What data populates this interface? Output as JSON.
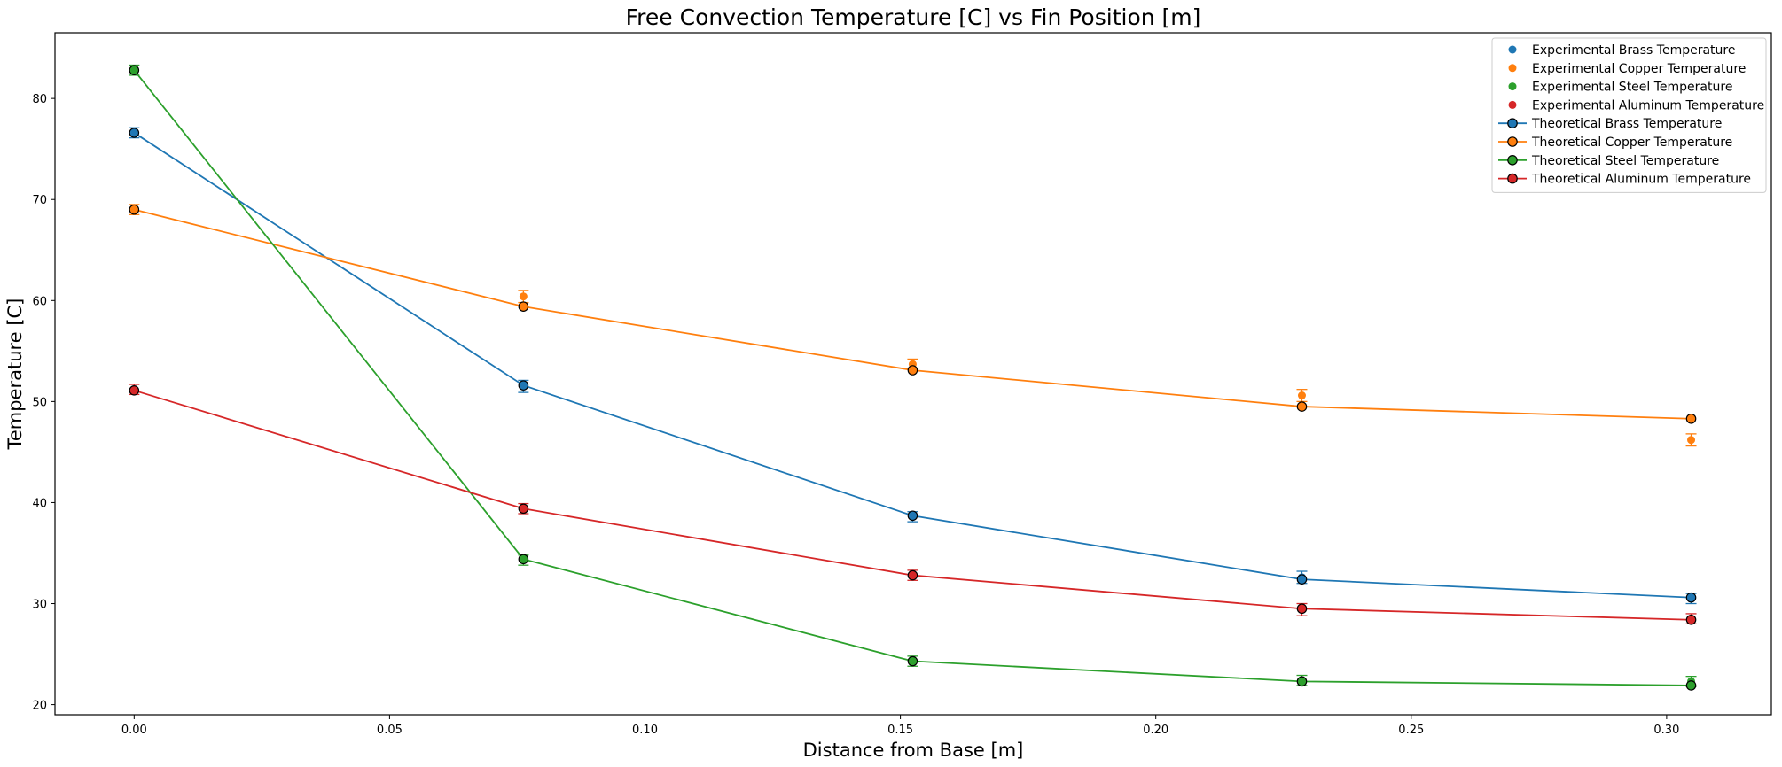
{
  "chart_data": {
    "type": "line",
    "title": "Free Convection Temperature [C] vs Fin Position [m]",
    "xlabel": "Distance from Base [m]",
    "ylabel": "Temperature [C]",
    "xlim": [
      -0.0155,
      0.3205
    ],
    "ylim": [
      19,
      86.5
    ],
    "xticks": [
      0.0,
      0.05,
      0.1,
      0.15,
      0.2,
      0.25,
      0.3
    ],
    "xtick_labels": [
      "0.00",
      "0.05",
      "0.10",
      "0.15",
      "0.20",
      "0.25",
      "0.30"
    ],
    "yticks": [
      20,
      30,
      40,
      50,
      60,
      70,
      80
    ],
    "ytick_labels": [
      "20",
      "30",
      "40",
      "50",
      "60",
      "70",
      "80"
    ],
    "grid": false,
    "legend_position": "top-right",
    "x": [
      0.0,
      0.0762,
      0.1524,
      0.2286,
      0.3048
    ],
    "series": [
      {
        "name": "Experimental Brass Temperature",
        "kind": "scatter",
        "color": "#1f77b4",
        "values": [
          76.6,
          51.5,
          38.6,
          32.6,
          30.5
        ],
        "errors": [
          0.5,
          0.6,
          0.5,
          0.6,
          0.5
        ]
      },
      {
        "name": "Experimental Copper Temperature",
        "kind": "scatter",
        "color": "#ff7f0e",
        "values": [
          69.0,
          60.4,
          53.7,
          50.6,
          46.2
        ],
        "errors": [
          0.5,
          0.6,
          0.5,
          0.6,
          0.6
        ]
      },
      {
        "name": "Experimental Steel Temperature",
        "kind": "scatter",
        "color": "#2ca02c",
        "values": [
          82.8,
          34.3,
          24.3,
          22.4,
          22.3
        ],
        "errors": [
          0.5,
          0.5,
          0.5,
          0.5,
          0.5
        ]
      },
      {
        "name": "Experimental Aluminum Temperature",
        "kind": "scatter",
        "color": "#d62728",
        "values": [
          51.2,
          39.4,
          32.8,
          29.4,
          28.5
        ],
        "errors": [
          0.5,
          0.5,
          0.5,
          0.6,
          0.5
        ]
      },
      {
        "name": "Theoretical Brass Temperature",
        "kind": "line",
        "color": "#1f77b4",
        "values": [
          76.6,
          51.6,
          38.7,
          32.4,
          30.6
        ]
      },
      {
        "name": "Theoretical Copper Temperature",
        "kind": "line",
        "color": "#ff7f0e",
        "values": [
          69.0,
          59.4,
          53.1,
          49.5,
          48.3
        ]
      },
      {
        "name": "Theoretical Steel Temperature",
        "kind": "line",
        "color": "#2ca02c",
        "values": [
          82.8,
          34.4,
          24.3,
          22.3,
          21.9
        ]
      },
      {
        "name": "Theoretical Aluminum Temperature",
        "kind": "line",
        "color": "#d62728",
        "values": [
          51.1,
          39.4,
          32.8,
          29.5,
          28.4
        ]
      }
    ]
  }
}
